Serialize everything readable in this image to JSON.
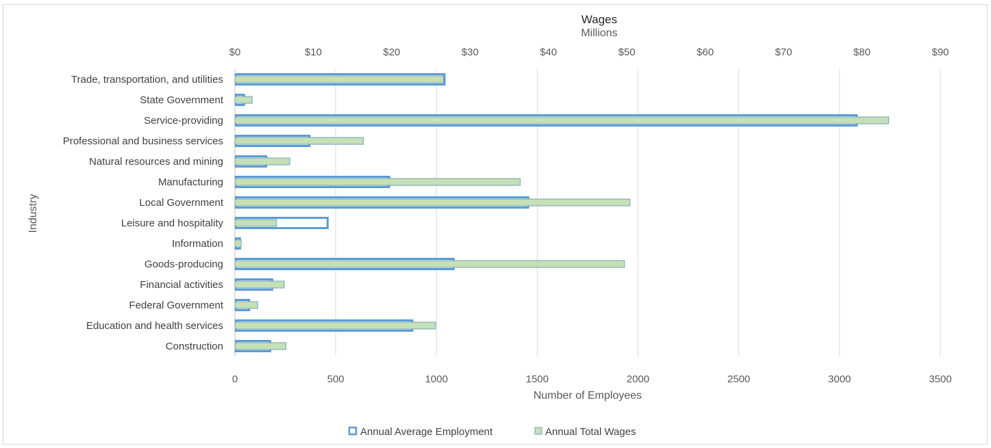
{
  "chart_data": {
    "type": "bar",
    "orientation": "horizontal",
    "categories": [
      "Trade, transportation, and utilities",
      "State Government",
      "Service-providing",
      "Professional and business services",
      "Natural resources and mining",
      "Manufacturing",
      "Local Government",
      "Leisure and hospitality",
      "Information",
      "Goods-producing",
      "Financial activities",
      "Federal Government",
      "Education and health services",
      "Construction"
    ],
    "series": [
      {
        "name": "Annual Average Employment",
        "axis": "bottom",
        "color": "#5b9bd5",
        "style": "outline",
        "values": [
          1040,
          45,
          3085,
          370,
          155,
          765,
          1455,
          460,
          25,
          1085,
          185,
          70,
          880,
          175
        ]
      },
      {
        "name": "Annual Total Wages",
        "axis": "top",
        "color": "#c5e0b4",
        "border": "#6fa0c0",
        "style": "filled",
        "values": [
          26.6,
          2.2,
          83.4,
          16.4,
          7.0,
          36.4,
          50.4,
          5.3,
          0.8,
          49.7,
          6.3,
          2.9,
          25.6,
          6.5
        ]
      }
    ],
    "bottom_axis": {
      "title": "Number of Employees",
      "range": [
        0,
        3500
      ],
      "ticks": [
        "0",
        "500",
        "1000",
        "1500",
        "2000",
        "2500",
        "3000",
        "3500"
      ]
    },
    "top_axis": {
      "title": "Wages",
      "subtitle": "Millions",
      "range": [
        0,
        90
      ],
      "ticks": [
        "$0",
        "$10",
        "$20",
        "$30",
        "$40",
        "$50",
        "$60",
        "$70",
        "$80",
        "$90"
      ]
    },
    "ylabel": "Industry",
    "grid": true,
    "legend_position": "bottom"
  }
}
